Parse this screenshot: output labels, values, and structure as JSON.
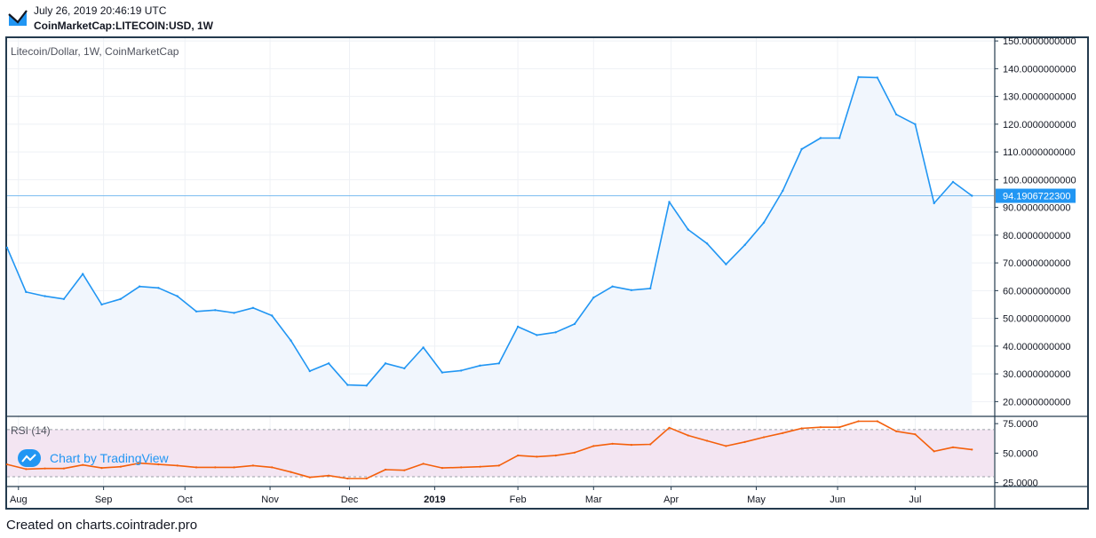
{
  "header": {
    "timestamp": "July 26, 2019 20:46:19 UTC",
    "symbol": "CoinMarketCap:LITECOIN:USD, 1W"
  },
  "footer": {
    "text": "Created on charts.cointrader.pro"
  },
  "badge": {
    "text": "Chart by TradingView"
  },
  "colors": {
    "price_line": "#2196f3",
    "price_fill": "#f1f6fd",
    "rsi_line": "#f4600c",
    "rsi_band": "#f3e5f2",
    "last_price_bg": "#2196f3",
    "frame": "#243b4e"
  },
  "chart_data": [
    {
      "type": "area",
      "title": "Litecoin/Dollar, 1W, CoinMarketCap",
      "ylim": [
        15,
        151
      ],
      "y_ticks": [
        "150.0000000000",
        "140.0000000000",
        "130.0000000000",
        "120.0000000000",
        "110.0000000000",
        "100.0000000000",
        "90.0000000000",
        "80.0000000000",
        "70.0000000000",
        "60.0000000000",
        "50.0000000000",
        "40.0000000000",
        "30.0000000000",
        "20.0000000000"
      ],
      "y_tick_values": [
        150,
        140,
        130,
        120,
        110,
        100,
        90,
        80,
        70,
        60,
        50,
        40,
        30,
        20
      ],
      "last_price_label": "94.1906722300",
      "last_price_value": 94.19,
      "x_ticks": [
        {
          "label": "Aug",
          "week": 0.6
        },
        {
          "label": "Sep",
          "week": 5.1
        },
        {
          "label": "Oct",
          "week": 9.4
        },
        {
          "label": "Nov",
          "week": 13.9
        },
        {
          "label": "Dec",
          "week": 18.1
        },
        {
          "label": "2019",
          "week": 22.6,
          "bold": true
        },
        {
          "label": "Feb",
          "week": 27.0
        },
        {
          "label": "Mar",
          "week": 31.0
        },
        {
          "label": "Apr",
          "week": 35.1
        },
        {
          "label": "May",
          "week": 39.6
        },
        {
          "label": "Jun",
          "week": 43.9
        },
        {
          "label": "Jul",
          "week": 48.0
        }
      ],
      "values": [
        75.5,
        59.5,
        58.0,
        57.0,
        66.0,
        55.0,
        57.0,
        61.5,
        61.0,
        58.0,
        52.5,
        53.0,
        52.0,
        53.8,
        51.0,
        42.0,
        31.0,
        33.8,
        26.0,
        25.8,
        33.8,
        32.0,
        39.5,
        30.5,
        31.2,
        33.0,
        33.8,
        47.0,
        44.0,
        45.0,
        48.0,
        57.5,
        61.5,
        60.2,
        60.8,
        92.0,
        82.0,
        77.0,
        69.5,
        76.5,
        84.5,
        96.0,
        111.0,
        115.0,
        115.0,
        137.0,
        136.8,
        123.5,
        120.0,
        91.5,
        99.2,
        94.19
      ]
    },
    {
      "type": "line",
      "title": "RSI (14)",
      "ylim": [
        22.5,
        80.4
      ],
      "y_ticks": [
        "75.0000",
        "50.0000",
        "25.0000"
      ],
      "y_tick_values": [
        75,
        50,
        25
      ],
      "band": [
        30,
        70
      ],
      "values": [
        40.5,
        36.5,
        37.0,
        37.0,
        40.0,
        37.5,
        38.5,
        41.5,
        40.5,
        39.5,
        38.0,
        38.0,
        38.0,
        39.5,
        38.0,
        34.0,
        29.5,
        31.0,
        28.5,
        28.5,
        36.0,
        35.5,
        41.0,
        37.5,
        38.0,
        38.5,
        39.5,
        48.0,
        47.0,
        48.0,
        50.5,
        56.0,
        58.0,
        57.0,
        57.5,
        71.5,
        65.0,
        60.5,
        56.0,
        59.5,
        63.5,
        67.0,
        71.0,
        72.0,
        72.0,
        77.0,
        77.0,
        68.5,
        66.0,
        51.5,
        55.0,
        53.0
      ]
    }
  ]
}
